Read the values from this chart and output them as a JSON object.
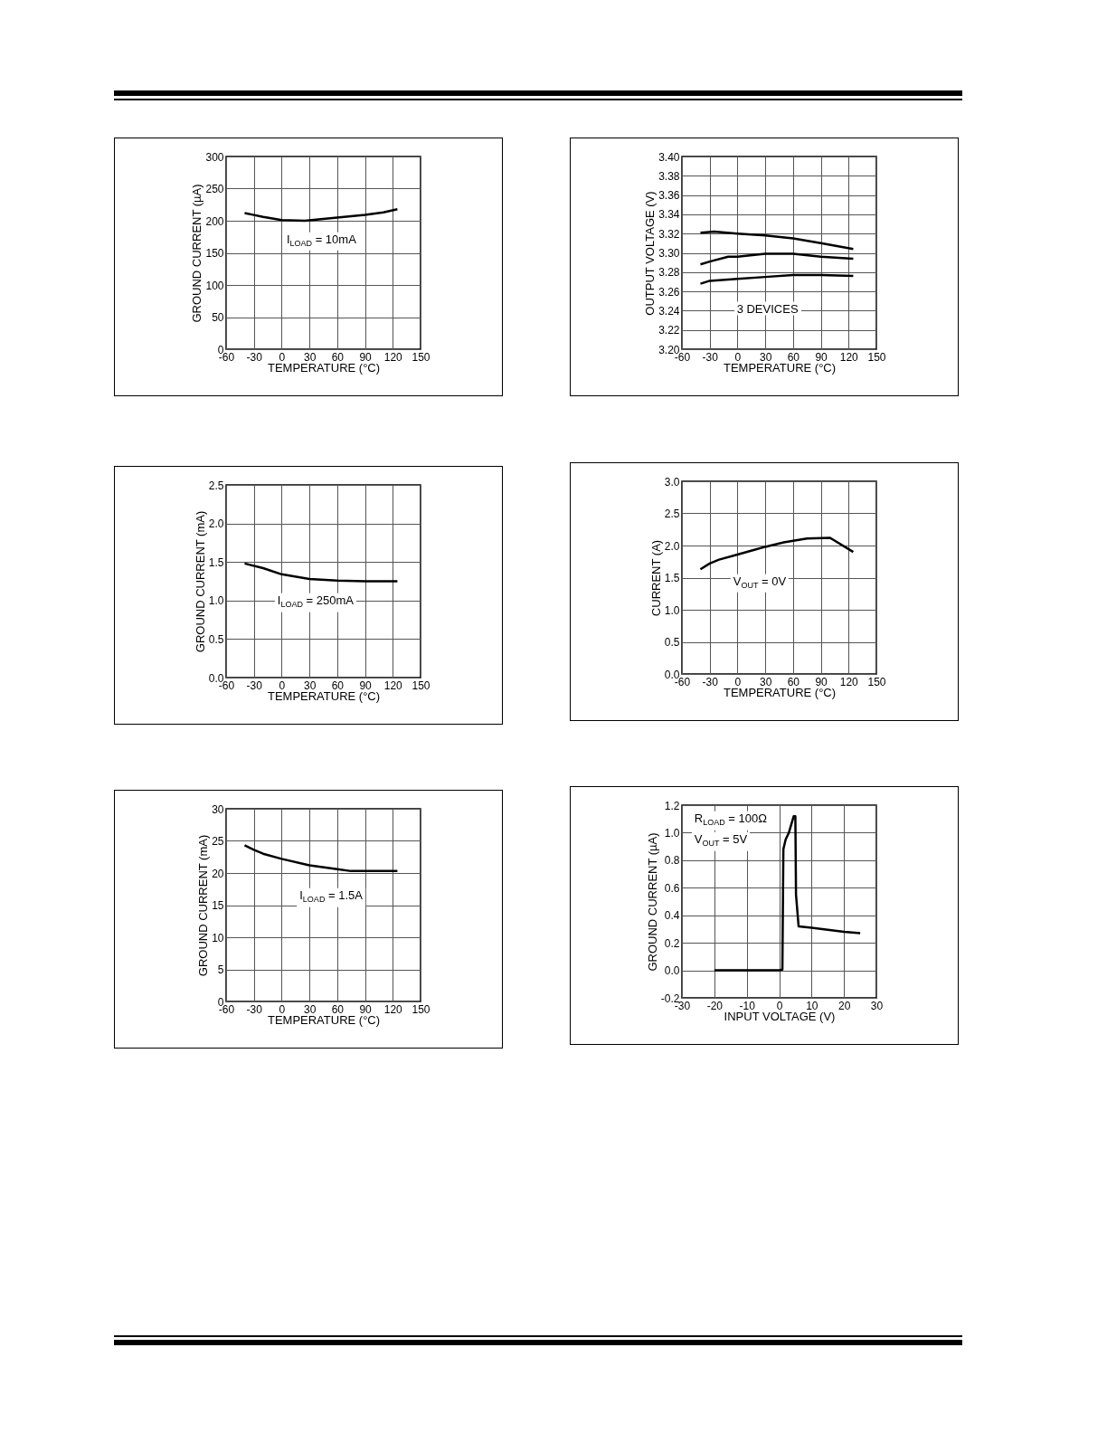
{
  "chart_data": [
    {
      "type": "line",
      "xlabel": "TEMPERATURE (°C)",
      "ylabel": "GROUND CURRENT (µA)",
      "color": "#000000",
      "x": [
        -40,
        -30,
        -20,
        0,
        25,
        40,
        60,
        90,
        110,
        125
      ],
      "values": [
        212,
        209,
        206,
        201,
        200,
        202,
        205,
        209,
        213,
        218
      ],
      "xlim": [
        -60,
        150
      ],
      "ylim": [
        0,
        300
      ],
      "xticks": [
        -60,
        -30,
        0,
        30,
        60,
        90,
        120,
        150
      ],
      "yticks": [
        0,
        50,
        100,
        150,
        200,
        250,
        300
      ],
      "grid": true,
      "annotations": [
        "I$_{LOAD}$ = 10mA"
      ]
    },
    {
      "type": "line",
      "xlabel": "TEMPERATURE (°C)",
      "ylabel": "OUTPUT VOLTAGE (V)",
      "series": [
        {
          "color": "#000000",
          "x": [
            -40,
            -25,
            0,
            30,
            60,
            90,
            125
          ],
          "values": [
            3.321,
            3.322,
            3.32,
            3.318,
            3.315,
            3.31,
            3.304
          ]
        },
        {
          "color": "#000000",
          "x": [
            -40,
            -30,
            -10,
            0,
            30,
            60,
            90,
            125
          ],
          "values": [
            3.288,
            3.291,
            3.296,
            3.296,
            3.299,
            3.299,
            3.296,
            3.294
          ]
        },
        {
          "color": "#000000",
          "x": [
            -40,
            -30,
            0,
            30,
            60,
            90,
            125
          ],
          "values": [
            3.268,
            3.271,
            3.273,
            3.275,
            3.277,
            3.277,
            3.276
          ]
        }
      ],
      "xlim": [
        -60,
        150
      ],
      "ylim": [
        3.2,
        3.4
      ],
      "xticks": [
        -60,
        -30,
        0,
        30,
        60,
        90,
        120,
        150
      ],
      "yticks": [
        {
          "value": 3.2,
          "label": "3.20"
        },
        3.22,
        3.24,
        3.26,
        3.28,
        {
          "value": 3.3,
          "label": "3.30"
        },
        3.32,
        3.34,
        3.36,
        3.38,
        {
          "value": 3.4,
          "label": "3.40"
        }
      ],
      "grid": true,
      "annotations": [
        "3 DEVICES"
      ]
    },
    {
      "type": "line",
      "xlabel": "TEMPERATURE (°C)",
      "ylabel": "GROUND CURRENT (mA)",
      "color": "#000000",
      "x": [
        -40,
        -20,
        0,
        30,
        60,
        90,
        125
      ],
      "values": [
        1.48,
        1.42,
        1.34,
        1.28,
        1.26,
        1.25,
        1.25
      ],
      "xlim": [
        -60,
        150
      ],
      "ylim": [
        0,
        2.5
      ],
      "xticks": [
        -60,
        -30,
        0,
        30,
        60,
        90,
        120,
        150
      ],
      "yticks": [
        {
          "value": 0,
          "label": "0.0"
        },
        0.5,
        {
          "value": 1,
          "label": "1.0"
        },
        1.5,
        {
          "value": 2,
          "label": "2.0"
        },
        2.5
      ],
      "grid": true,
      "annotations": [
        "I$_{LOAD}$ = 250mA"
      ]
    },
    {
      "type": "line",
      "xlabel": "TEMPERATURE (°C)",
      "ylabel": "CURRENT (A)",
      "color": "#000000",
      "x": [
        -40,
        -30,
        -20,
        0,
        20,
        30,
        50,
        75,
        100,
        125
      ],
      "values": [
        1.63,
        1.72,
        1.78,
        1.86,
        1.94,
        1.98,
        2.05,
        2.11,
        2.12,
        1.9
      ],
      "xlim": [
        -60,
        150
      ],
      "ylim": [
        0,
        3
      ],
      "xticks": [
        -60,
        -30,
        0,
        30,
        60,
        90,
        120,
        150
      ],
      "yticks": [
        {
          "value": 0,
          "label": "0.0"
        },
        0.5,
        {
          "value": 1,
          "label": "1.0"
        },
        1.5,
        {
          "value": 2,
          "label": "2.0"
        },
        2.5,
        {
          "value": 3,
          "label": "3.0"
        }
      ],
      "grid": true,
      "annotations": [
        "V$_{OUT}$ = 0V"
      ]
    },
    {
      "type": "line",
      "xlabel": "TEMPERATURE (°C)",
      "ylabel": "GROUND CURRENT (mA)",
      "color": "#000000",
      "x": [
        -40,
        -30,
        -20,
        0,
        30,
        60,
        75,
        125
      ],
      "values": [
        24.3,
        23.6,
        23.0,
        22.2,
        21.2,
        20.6,
        20.3,
        20.3
      ],
      "xlim": [
        -60,
        150
      ],
      "ylim": [
        0,
        30
      ],
      "xticks": [
        -60,
        -30,
        0,
        30,
        60,
        90,
        120,
        150
      ],
      "yticks": [
        0,
        5,
        10,
        15,
        20,
        25,
        30
      ],
      "grid": true,
      "annotations": [
        "I$_{LOAD}$ = 1.5A"
      ]
    },
    {
      "type": "line",
      "xlabel": "INPUT VOLTAGE (V)",
      "ylabel": "GROUND CURRENT (µA)",
      "color": "#000000",
      "x": [
        -20,
        0,
        1,
        1.3,
        2,
        3,
        4.5,
        5,
        5.2,
        6,
        10,
        20,
        25
      ],
      "values": [
        0,
        0,
        0.005,
        0.88,
        0.95,
        1.0,
        1.12,
        1.12,
        0.55,
        0.32,
        0.31,
        0.28,
        0.27
      ],
      "xlim": [
        -30,
        30
      ],
      "xticks": [
        -30,
        -20,
        -10,
        0,
        10,
        20,
        30
      ],
      "ylim": [
        -0.2,
        1.2
      ],
      "yticks": [
        -0.2,
        {
          "value": 0,
          "label": "0.0"
        },
        0.2,
        0.4,
        0.6,
        0.8,
        {
          "value": 1,
          "label": "1.0"
        },
        1.2
      ],
      "grid": true,
      "annotations": [
        "R$_{LOAD}$ = 100Ω",
        "V$_{OUT}$ = 5V"
      ]
    }
  ]
}
